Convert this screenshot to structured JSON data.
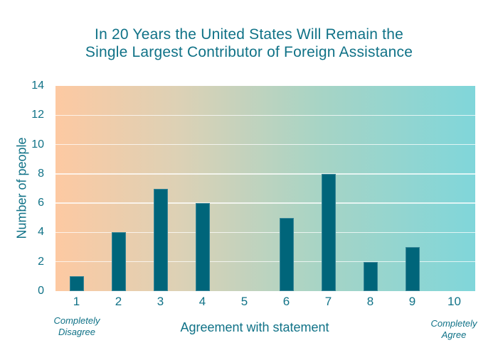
{
  "title": {
    "line1": "In 20 Years the United States Will Remain the",
    "line2": "Single Largest Contributor of Foreign Assistance"
  },
  "chart_data": {
    "type": "bar",
    "title": "In 20 Years the United States Will Remain the Single Largest Contributor of Foreign Assistance",
    "categories": [
      "1",
      "2",
      "3",
      "4",
      "5",
      "6",
      "7",
      "8",
      "9",
      "10"
    ],
    "values": [
      1,
      4,
      7,
      6,
      0,
      5,
      8,
      2,
      3,
      0
    ],
    "xlabel": "Agreement with statement",
    "ylabel": "Number of people",
    "ylim": [
      0,
      14
    ],
    "yticks": [
      0,
      2,
      4,
      6,
      8,
      10,
      12,
      14
    ],
    "gridlines": [
      2,
      4,
      6,
      8,
      10,
      12
    ],
    "legend": "none",
    "x_annotations": {
      "left": "Completely Disagree",
      "right": "Completely Agree"
    },
    "colors": {
      "bar": "#00657a",
      "text": "#107287",
      "gridline": "#ffffff",
      "plot_gradient": [
        "#fdc9a2",
        "#ddd1b5",
        "#a7d4c5",
        "#80d6da"
      ]
    }
  }
}
